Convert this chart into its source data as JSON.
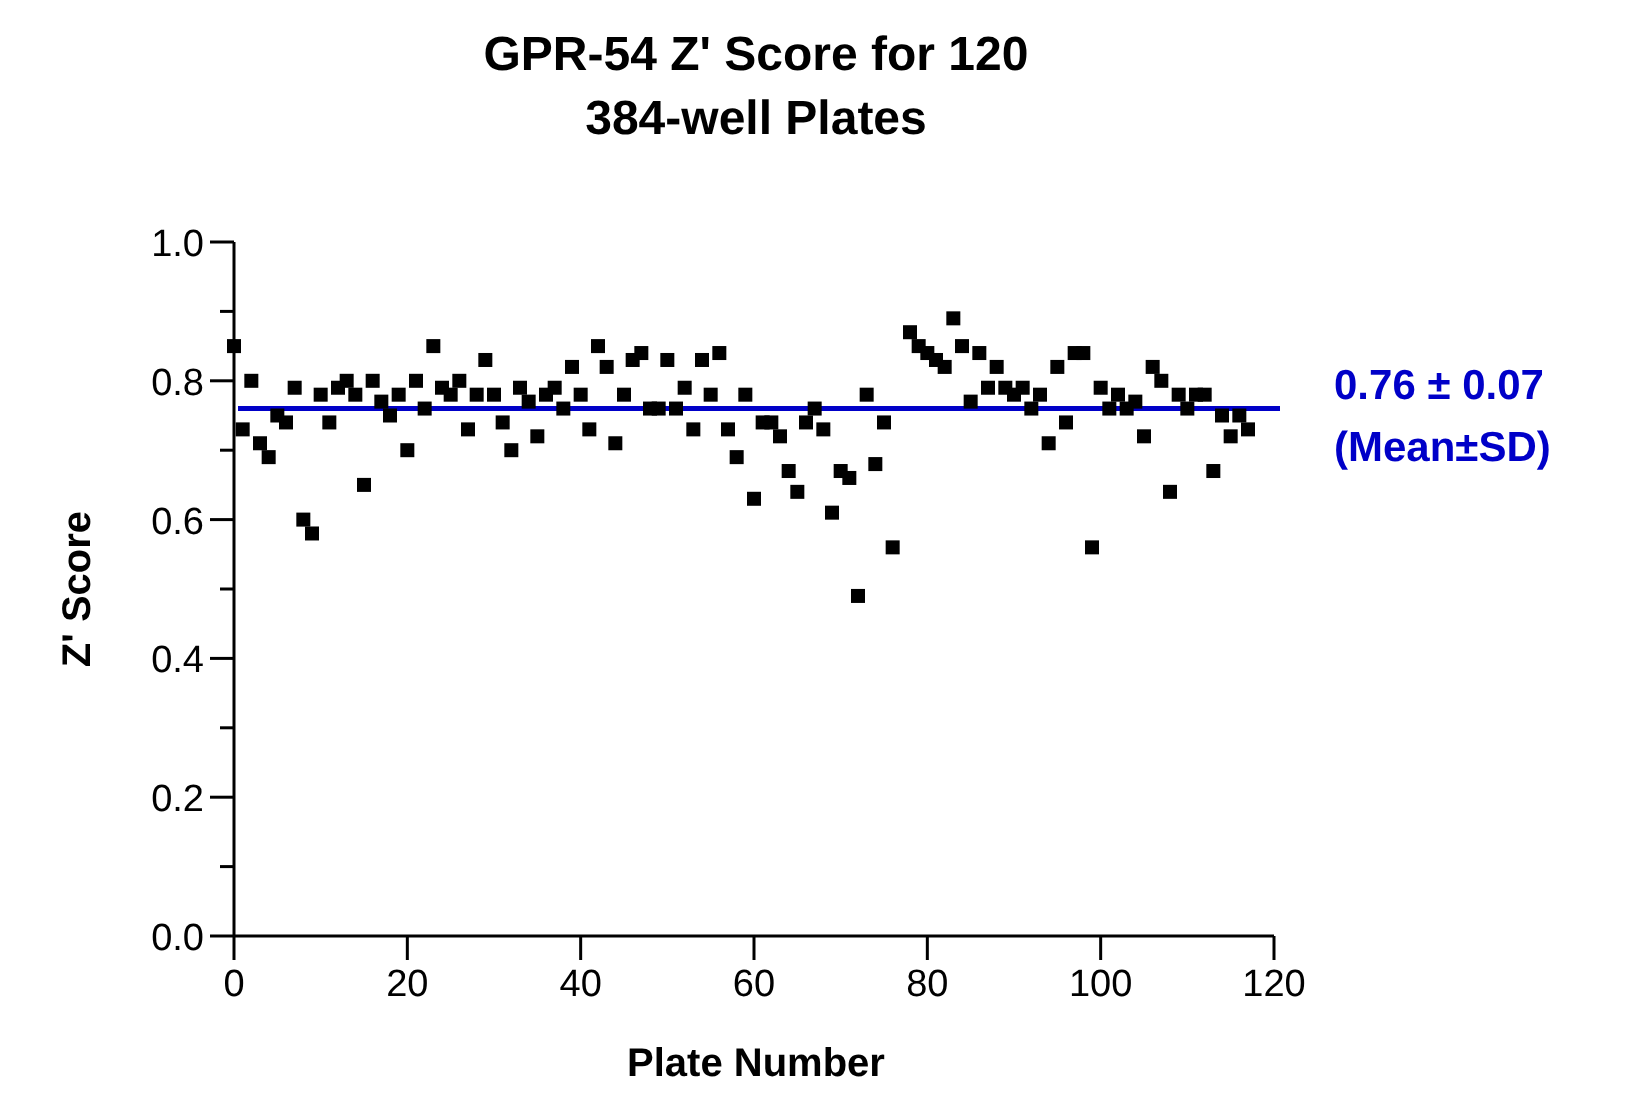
{
  "chart_data": {
    "type": "scatter",
    "title": "GPR-54 Z' Score for 120\n384-well Plates",
    "xlabel": "Plate Number",
    "ylabel": "Z' Score",
    "x": [
      0,
      1,
      2,
      3,
      4,
      5,
      6,
      7,
      8,
      9,
      10,
      11,
      12,
      13,
      14,
      15,
      16,
      17,
      18,
      19,
      20,
      21,
      22,
      23,
      24,
      25,
      26,
      27,
      28,
      29,
      30,
      31,
      32,
      33,
      34,
      35,
      36,
      37,
      38,
      39,
      40,
      41,
      42,
      43,
      44,
      45,
      46,
      47,
      48,
      49,
      50,
      51,
      52,
      53,
      54,
      55,
      56,
      57,
      58,
      59,
      60,
      61,
      62,
      63,
      64,
      65,
      66,
      67,
      68,
      69,
      70,
      71,
      72,
      73,
      74,
      75,
      76,
      78,
      79,
      80,
      81,
      82,
      83,
      84,
      85,
      86,
      87,
      88,
      89,
      90,
      91,
      92,
      93,
      94,
      95,
      96,
      97,
      98,
      99,
      100,
      101,
      102,
      103,
      104,
      105,
      106,
      107,
      108,
      109,
      110,
      111,
      112,
      113,
      114,
      115,
      116,
      117
    ],
    "series": [
      {
        "color": "#000000",
        "marker": "square",
        "values": [
          0.85,
          0.73,
          0.8,
          0.71,
          0.69,
          0.75,
          0.74,
          0.79,
          0.6,
          0.58,
          0.78,
          0.74,
          0.79,
          0.8,
          0.78,
          0.65,
          0.8,
          0.77,
          0.75,
          0.78,
          0.7,
          0.8,
          0.76,
          0.85,
          0.79,
          0.78,
          0.8,
          0.73,
          0.78,
          0.83,
          0.78,
          0.74,
          0.7,
          0.79,
          0.77,
          0.72,
          0.78,
          0.79,
          0.76,
          0.82,
          0.78,
          0.73,
          0.85,
          0.82,
          0.71,
          0.78,
          0.83,
          0.84,
          0.76,
          0.76,
          0.83,
          0.76,
          0.79,
          0.73,
          0.83,
          0.78,
          0.84,
          0.73,
          0.69,
          0.78,
          0.63,
          0.74,
          0.74,
          0.72,
          0.67,
          0.64,
          0.74,
          0.76,
          0.73,
          0.61,
          0.67,
          0.66,
          0.49,
          0.78,
          0.68,
          0.74,
          0.56,
          0.87,
          0.85,
          0.84,
          0.83,
          0.82,
          0.89,
          0.85,
          0.77,
          0.84,
          0.79,
          0.82,
          0.79,
          0.78,
          0.79,
          0.76,
          0.78,
          0.71,
          0.82,
          0.74,
          0.84,
          0.84,
          0.56,
          0.79,
          0.76,
          0.78,
          0.76,
          0.77,
          0.72,
          0.82,
          0.8,
          0.64,
          0.78,
          0.76,
          0.78,
          0.78,
          0.67,
          0.75,
          0.72,
          0.75,
          0.73
        ]
      }
    ],
    "xlim": [
      0,
      120
    ],
    "xticks": [
      0,
      20,
      40,
      60,
      80,
      100,
      120
    ],
    "ylim": [
      0,
      1
    ],
    "yticks": [
      {
        "value": 0,
        "label": "0.0"
      },
      {
        "value": 0.1,
        "label": null
      },
      {
        "value": 0.2,
        "label": "0.2"
      },
      {
        "value": 0.3,
        "label": null
      },
      {
        "value": 0.4,
        "label": "0.4"
      },
      {
        "value": 0.5,
        "label": null
      },
      {
        "value": 0.6,
        "label": "0.6"
      },
      {
        "value": 0.7,
        "label": null
      },
      {
        "value": 0.8,
        "label": "0.8"
      },
      {
        "value": 0.9,
        "label": null
      },
      {
        "value": 1,
        "label": "1.0"
      }
    ],
    "ref_lines": [
      {
        "axis": "y",
        "value": 0.76,
        "label": "0.76 ± 0.07\n(Mean±SD)",
        "color": "#0000c8"
      }
    ],
    "grid": false
  }
}
